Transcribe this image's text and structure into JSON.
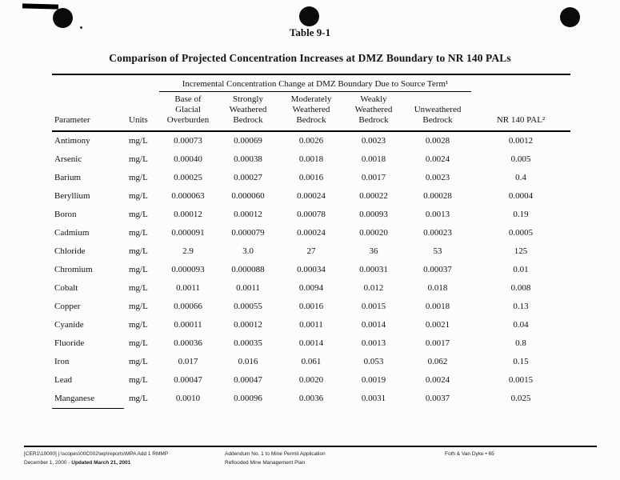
{
  "page": {
    "table_label": "Table 9-1",
    "title": "Comparison of Projected Concentration Increases at DMZ Boundary to NR 140 PALs"
  },
  "table": {
    "group_header": "Incremental Concentration Change at DMZ Boundary Due to Source Term¹",
    "columns": [
      "Parameter",
      "Units",
      "Base of\nGlacial\nOverburden",
      "Strongly\nWeathered\nBedrock",
      "Moderately\nWeathered\nBedrock",
      "Weakly\nWeathered\nBedrock",
      "Unweathered\nBedrock",
      "NR 140 PAL²"
    ],
    "rows": [
      {
        "parameter": "Antimony",
        "units": "mg/L",
        "values": [
          "0.00073",
          "0.00069",
          "0.0026",
          "0.0023",
          "0.0028"
        ],
        "nr140_pal": "0.0012"
      },
      {
        "parameter": "Arsenic",
        "units": "mg/L",
        "values": [
          "0.00040",
          "0.00038",
          "0.0018",
          "0.0018",
          "0.0024"
        ],
        "nr140_pal": "0.005"
      },
      {
        "parameter": "Barium",
        "units": "mg/L",
        "values": [
          "0.00025",
          "0.00027",
          "0.0016",
          "0.0017",
          "0.0023"
        ],
        "nr140_pal": "0.4"
      },
      {
        "parameter": "Beryllium",
        "units": "mg/L",
        "values": [
          "0.000063",
          "0.000060",
          "0.00024",
          "0.00022",
          "0.00028"
        ],
        "nr140_pal": "0.0004"
      },
      {
        "parameter": "Boron",
        "units": "mg/L",
        "values": [
          "0.00012",
          "0.00012",
          "0.00078",
          "0.00093",
          "0.0013"
        ],
        "nr140_pal": "0.19"
      },
      {
        "parameter": "Cadmium",
        "units": "mg/L",
        "values": [
          "0.000091",
          "0.000079",
          "0.00024",
          "0.00020",
          "0.00023"
        ],
        "nr140_pal": "0.0005"
      },
      {
        "parameter": "Chloride",
        "units": "mg/L",
        "values": [
          "2.9",
          "3.0",
          "27",
          "36",
          "53"
        ],
        "nr140_pal": "125"
      },
      {
        "parameter": "Chromium",
        "units": "mg/L",
        "values": [
          "0.000093",
          "0.000088",
          "0.00034",
          "0.00031",
          "0.00037"
        ],
        "nr140_pal": "0.01"
      },
      {
        "parameter": "Cobalt",
        "units": "mg/L",
        "values": [
          "0.0011",
          "0.0011",
          "0.0094",
          "0.012",
          "0.018"
        ],
        "nr140_pal": "0.008"
      },
      {
        "parameter": "Copper",
        "units": "mg/L",
        "values": [
          "0.00066",
          "0.00055",
          "0.0016",
          "0.0015",
          "0.0018"
        ],
        "nr140_pal": "0.13"
      },
      {
        "parameter": "Cyanide",
        "units": "mg/L",
        "values": [
          "0.00011",
          "0.00012",
          "0.0011",
          "0.0014",
          "0.0021"
        ],
        "nr140_pal": "0.04"
      },
      {
        "parameter": "Fluoride",
        "units": "mg/L",
        "values": [
          "0.00036",
          "0.00035",
          "0.0014",
          "0.0013",
          "0.0017"
        ],
        "nr140_pal": "0.8"
      },
      {
        "parameter": "Iron",
        "units": "mg/L",
        "values": [
          "0.017",
          "0.016",
          "0.061",
          "0.053",
          "0.062"
        ],
        "nr140_pal": "0.15"
      },
      {
        "parameter": "Lead",
        "units": "mg/L",
        "values": [
          "0.00047",
          "0.00047",
          "0.0020",
          "0.0019",
          "0.0024"
        ],
        "nr140_pal": "0.0015"
      },
      {
        "parameter": "Manganese",
        "units": "mg/L",
        "values": [
          "0.0010",
          "0.00096",
          "0.0036",
          "0.0031",
          "0.0037"
        ],
        "nr140_pal": "0.025"
      }
    ]
  },
  "footer": {
    "left_line1": "[CER1\\10000] j:\\scopes\\00C002\\wp\\reports\\MPA Add 1 RMMP",
    "left_line2_normal": "December 1, 2000 - ",
    "left_line2_bold": "Updated March 21, 2001",
    "center_line1": "Addendum No. 1 to Mine Permit Application",
    "center_line2": "Reflooded Mine Management Plan",
    "right": "Foth & Van Dyke • 65"
  }
}
